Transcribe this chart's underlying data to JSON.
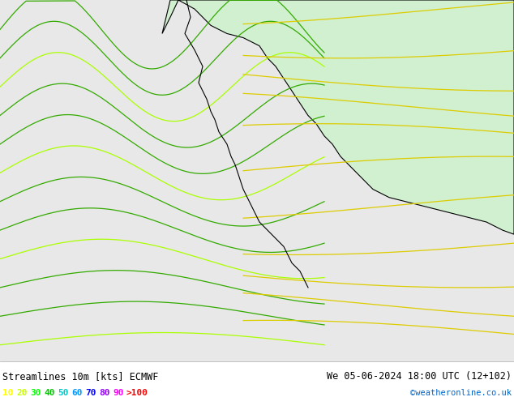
{
  "title_left": "Streamlines 10m [kts] ECMWF",
  "title_right": "We 05-06-2024 18:00 UTC (12+102)",
  "credit": "©weatheronline.co.uk",
  "legend_values": [
    "10",
    "20",
    "30",
    "40",
    "50",
    "60",
    "70",
    "80",
    "90",
    ">100"
  ],
  "legend_colors": [
    "#ffff00",
    "#c8ff00",
    "#00ff00",
    "#00c800",
    "#00c8c8",
    "#0096ff",
    "#0000ff",
    "#9600ff",
    "#ff00ff",
    "#ff0000"
  ],
  "background_color": "#ffffff",
  "land_color_low": "#e8ffe8",
  "land_color_high": "#c8ffc8",
  "ocean_color": "#f0f0f0",
  "text_color": "#000000",
  "streamline_colors": {
    "green_dark": "#00aa00",
    "green_bright": "#aaff00",
    "yellow": "#ffff00",
    "orange": "#ff9600"
  },
  "figsize": [
    6.34,
    4.9
  ],
  "dpi": 100
}
